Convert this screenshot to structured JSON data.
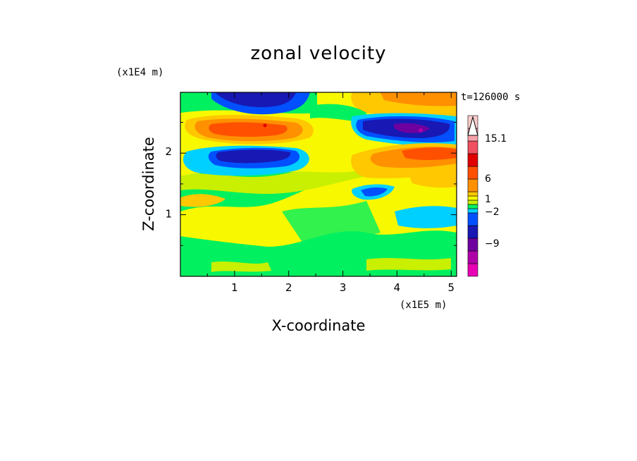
{
  "chart_data": {
    "type": "heatmap",
    "title": "zonal velocity",
    "xlabel": "X-coordinate",
    "ylabel": "Z-coordinate",
    "x_unit": "(x1E5 m)",
    "y_unit": "(x1E4 m)",
    "time_label": "t=126000 s",
    "xlim": [
      0,
      5.1
    ],
    "ylim": [
      0,
      2.95
    ],
    "x_ticks": [
      1,
      2,
      3,
      4,
      5
    ],
    "y_ticks": [
      1,
      2
    ],
    "colorbar": {
      "ticks": [
        {
          "label": "15.1",
          "value": 15.1
        },
        {
          "label": "6",
          "value": 6
        },
        {
          "label": "1",
          "value": 1
        },
        {
          "label": "−2",
          "value": -2
        },
        {
          "label": "−9",
          "value": -9
        }
      ],
      "colors_bottom_to_top": [
        "#e800b4",
        "#b000a8",
        "#6e00a0",
        "#1818b4",
        "#0050ff",
        "#00d0ff",
        "#00f060",
        "#c8f000",
        "#f8f800",
        "#ffc800",
        "#ff9000",
        "#ff5000",
        "#e00000",
        "#f05060",
        "#f8a0a8",
        "#fccccc"
      ]
    },
    "bands": [
      {
        "name": "top-left blue jet",
        "z_center": 2.8,
        "value": -5
      },
      {
        "name": "upper orange jet",
        "z_center": 2.45,
        "value": 6
      },
      {
        "name": "upper-right blue jet",
        "z_center": 2.4,
        "value": -8
      },
      {
        "name": "mid-left blue jet",
        "z_center": 1.95,
        "value": -5
      },
      {
        "name": "mid-right orange band",
        "z_center": 1.95,
        "value": 4
      },
      {
        "name": "lower yellow layer",
        "z_center": 1.0,
        "value": 1
      },
      {
        "name": "surface green layer",
        "z_center": 0.2,
        "value": -1
      }
    ]
  }
}
